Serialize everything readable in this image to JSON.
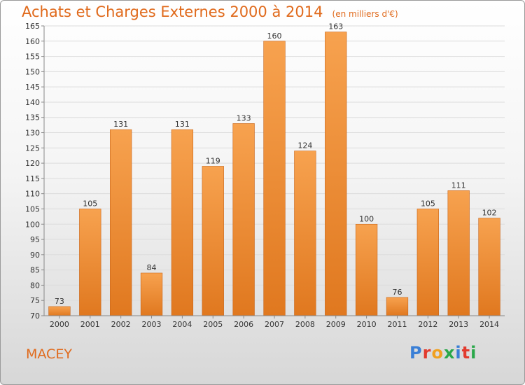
{
  "header": {
    "title": "Achats et Charges Externes 2000 à 2014",
    "subtitle": "(en milliers d'€)"
  },
  "footer": {
    "commune": "MACEY",
    "brand": "Proxiti",
    "brand_colors": [
      "#3a7fd6",
      "#e23b2e",
      "#f0a020",
      "#2aa84a",
      "#3a7fd6",
      "#e23b2e",
      "#2aa84a"
    ]
  },
  "colors": {
    "accent": "#e06a1c",
    "bar_top": "#f7a24f",
    "bar_bottom": "#e0781f",
    "bar_edge": "#c8651a"
  },
  "chart_data": {
    "type": "bar",
    "title": "Achats et Charges Externes 2000 à 2014",
    "subtitle": "(en milliers d'€)",
    "xlabel": "",
    "ylabel": "",
    "categories": [
      "2000",
      "2001",
      "2002",
      "2003",
      "2004",
      "2005",
      "2006",
      "2007",
      "2008",
      "2009",
      "2010",
      "2011",
      "2012",
      "2013",
      "2014"
    ],
    "values": [
      73,
      105,
      131,
      84,
      131,
      119,
      133,
      160,
      124,
      163,
      100,
      76,
      105,
      111,
      102
    ],
    "value_labels": [
      "73",
      "105",
      "131",
      "84",
      "131",
      "119",
      "133",
      "160",
      "124",
      "163",
      "100",
      "76",
      "105",
      "111",
      "102"
    ],
    "yticks": [
      70,
      75,
      80,
      85,
      90,
      95,
      100,
      105,
      110,
      115,
      120,
      125,
      130,
      135,
      140,
      145,
      150,
      155,
      160,
      165
    ],
    "ylim": [
      70,
      165
    ],
    "grid": true,
    "legend": "none"
  }
}
